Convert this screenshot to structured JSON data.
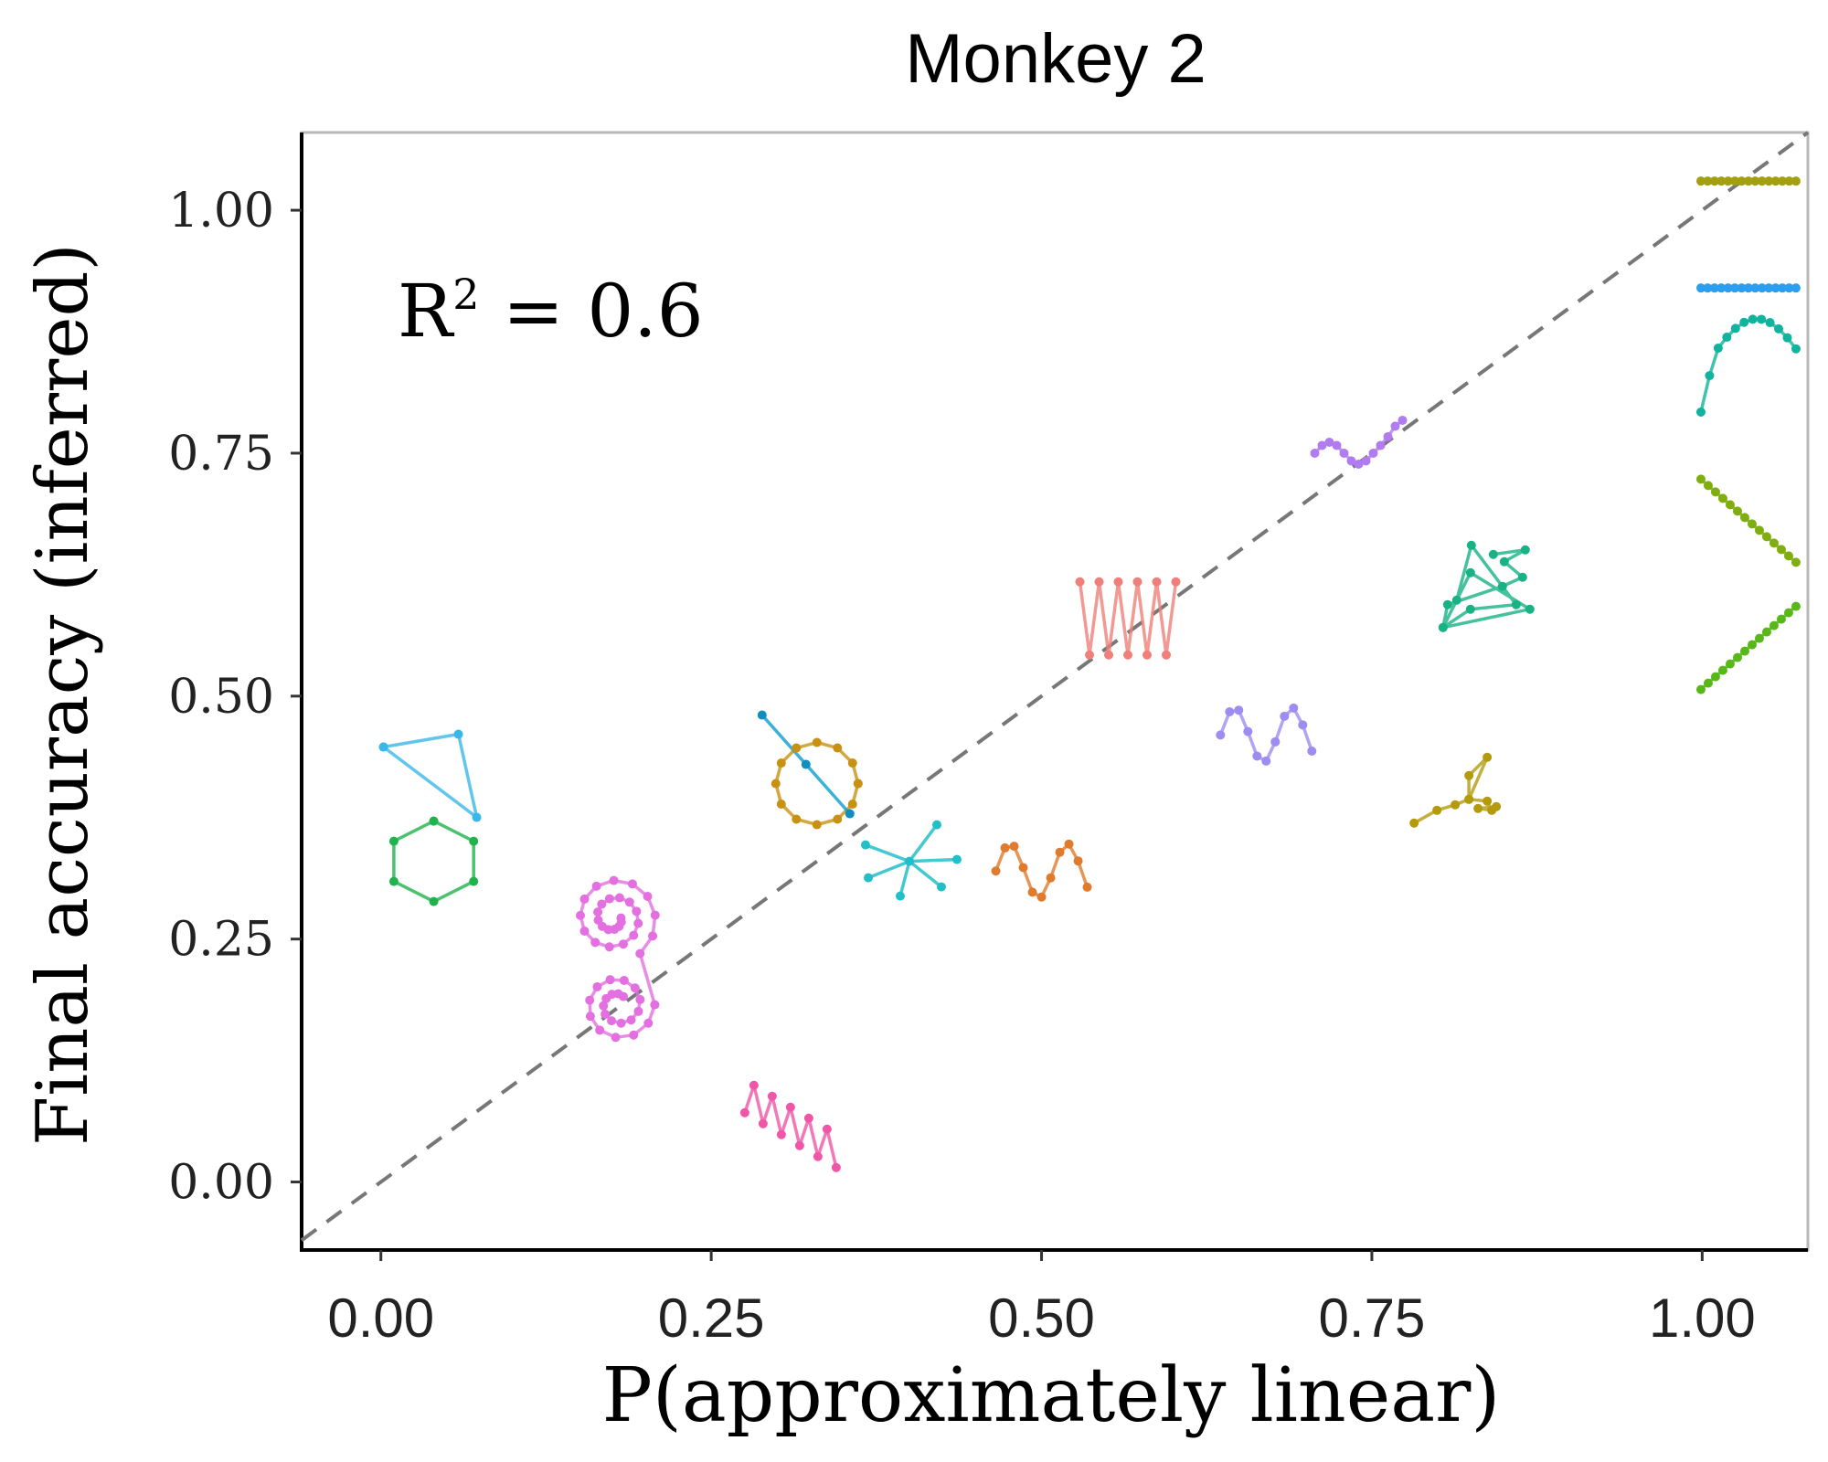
{
  "chart_data": {
    "type": "scatter",
    "title": "Monkey 2",
    "xlabel": "P(approximately linear)",
    "ylabel": "Final accuracy (inferred)",
    "xlim": [
      -0.06,
      1.08
    ],
    "ylim": [
      -0.07,
      1.08
    ],
    "xticks": [
      "0.00",
      "0.25",
      "0.50",
      "0.75",
      "1.00"
    ],
    "yticks": [
      "0.00",
      "0.25",
      "0.50",
      "0.75",
      "1.00"
    ],
    "annotation": {
      "text": "R",
      "sup": "2",
      "rest": " = 0.6"
    },
    "reference_line": {
      "style": "dashed",
      "slope": 1,
      "intercept": 0,
      "color": "#777777"
    },
    "grid": false,
    "markers": [
      {
        "shape": "triangle",
        "x": 0.04,
        "y": 0.41,
        "color": "#39b7e8"
      },
      {
        "shape": "hexagon",
        "x": 0.04,
        "y": 0.33,
        "color": "#1fb34e"
      },
      {
        "shape": "double-spiral",
        "x": 0.19,
        "y": 0.22,
        "color": "#e36fe0"
      },
      {
        "shape": "zigzag-small",
        "x": 0.31,
        "y": 0.06,
        "color": "#f056a8"
      },
      {
        "shape": "circle-with-line",
        "x": 0.33,
        "y": 0.41,
        "color": "#c99111"
      },
      {
        "shape": "star",
        "x": 0.4,
        "y": 0.33,
        "color": "#22bfc9"
      },
      {
        "shape": "wave",
        "x": 0.5,
        "y": 0.32,
        "color": "#e07a2c"
      },
      {
        "shape": "zigzag-large",
        "x": 0.565,
        "y": 0.58,
        "color": "#ef7f78"
      },
      {
        "shape": "wave",
        "x": 0.67,
        "y": 0.46,
        "color": "#9f8cf0"
      },
      {
        "shape": "wiggle",
        "x": 0.74,
        "y": 0.75,
        "color": "#b07cf0"
      },
      {
        "shape": "branch",
        "x": 0.82,
        "y": 0.39,
        "color": "#b49b0d"
      },
      {
        "shape": "triangle-zigzag",
        "x": 0.835,
        "y": 0.58,
        "color": "#17b385"
      },
      {
        "shape": "horizontal-line",
        "x": 1.035,
        "y": 1.03,
        "color": "#a3a010"
      },
      {
        "shape": "horizontal-line",
        "x": 1.035,
        "y": 0.92,
        "color": "#2b9ef0"
      },
      {
        "shape": "arc",
        "x": 1.035,
        "y": 0.86,
        "color": "#10b39d"
      },
      {
        "shape": "diagonal-line-down",
        "x": 1.035,
        "y": 0.68,
        "color": "#7fae10"
      },
      {
        "shape": "diagonal-line-up",
        "x": 1.035,
        "y": 0.55,
        "color": "#58b81a"
      }
    ]
  }
}
